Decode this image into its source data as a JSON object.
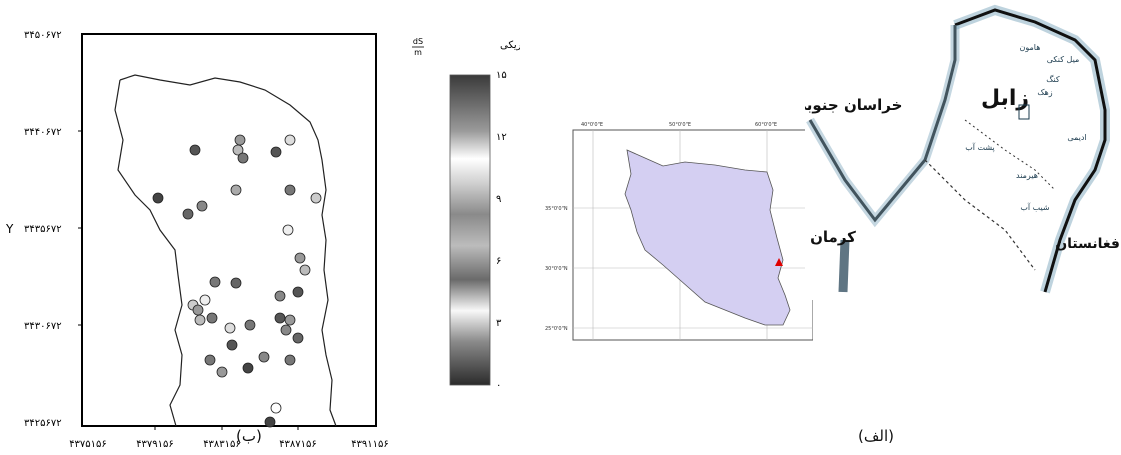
{
  "panel_b": {
    "y_axis_label": "Y",
    "y_ticks": [
      "۳۴۵۰۶۷۲",
      "۳۴۴۰۶۷۲",
      "۳۴۳۵۶۷۲",
      "۳۴۳۰۶۷۲",
      "۳۴۲۵۶۷۲"
    ],
    "x_ticks": [
      "۴۳۷۵۱۵۶",
      "۴۳۷۹۱۵۶",
      "۴۳۸۳۱۵۶",
      "۴۳۸۷۱۵۶",
      "۴۳۹۱۱۵۶"
    ],
    "colorbar": {
      "title": "هدایت الکتریکی",
      "unit_numerator": "dS",
      "unit_denominator": "m",
      "ticks": [
        "۱۵",
        "۱۲",
        "۹",
        "۶",
        "۳",
        "۰"
      ]
    },
    "panel_label": "(ب)"
  },
  "iran_map": {
    "lon_ticks": [
      "40°0'0\"E",
      "50°0'0\"E",
      "60°0'0\"E"
    ],
    "lat_ticks": [
      "35°0'0\"N",
      "30°0'0\"N",
      "25°0'0\"N"
    ],
    "fill_color": "#d4cff2",
    "marker_color": "#e00000"
  },
  "region_map": {
    "labels": {
      "north_khorasan": "خراسان جنوبی",
      "kerman": "کرمان",
      "afghanistan": "افغانستان",
      "zabol": "زابل"
    },
    "towns": [
      "هامون",
      "میل کنکی",
      "کنگ",
      "زهک",
      "پشت آب",
      "شیب آب",
      "هیرمند",
      "ادیمی"
    ]
  },
  "panel_label_alef": "(الف)"
}
